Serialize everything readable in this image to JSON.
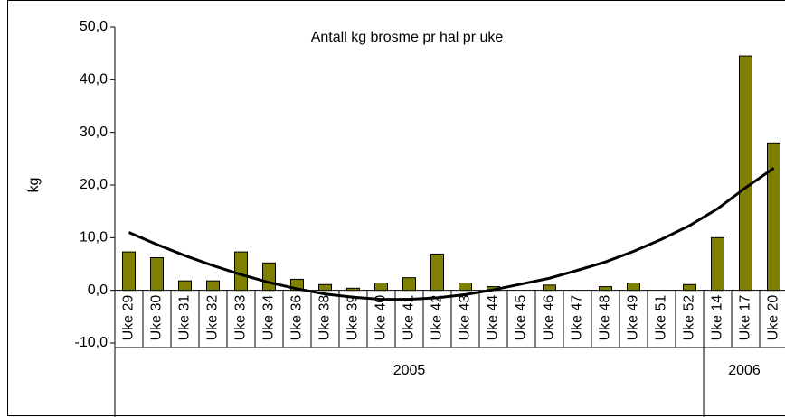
{
  "chart_data": {
    "type": "bar",
    "title": "Antall kg brosme pr hal pr uke",
    "y_label": "kg",
    "categories": [
      "Uke 29",
      "Uke 30",
      "Uke 31",
      "Uke 32",
      "Uke 33",
      "Uke 34",
      "Uke 36",
      "Uke 38",
      "Uke 39",
      "Uke 40",
      "Uke 41",
      "Uke 42",
      "Uke 43",
      "Uke 44",
      "Uke 45",
      "Uke 46",
      "Uke 47",
      "Uke 48",
      "Uke 49",
      "Uke 51",
      "Uke 52",
      "Uke 14",
      "Uke 17",
      "Uke 20"
    ],
    "values": [
      7.3,
      6.2,
      1.8,
      1.8,
      7.3,
      5.2,
      2.1,
      1.1,
      0.4,
      1.4,
      2.4,
      6.9,
      1.4,
      0.7,
      0,
      1.0,
      0,
      0.7,
      1.4,
      0,
      1.1,
      10.0,
      44.5,
      28.0
    ],
    "color": "#808000",
    "trendline": {
      "color": "#000000",
      "values": [
        11,
        8.7,
        6.6,
        4.7,
        3.0,
        1.5,
        0.3,
        -0.7,
        -1.3,
        -1.7,
        -1.7,
        -1.4,
        -0.8,
        0.1,
        1.2,
        2.3,
        3.8,
        5.4,
        7.4,
        9.7,
        12.3,
        15.5,
        19.5,
        23.2
      ]
    },
    "groups": [
      {
        "label": "2005",
        "first": 0,
        "last": 20
      },
      {
        "label": "2006",
        "first": 21,
        "last": 23
      }
    ],
    "ylim": [
      -10,
      50
    ],
    "yticks": [
      {
        "value": -10,
        "label": "-10,0"
      },
      {
        "value": 0,
        "label": "0,0"
      },
      {
        "value": 10,
        "label": "10,0"
      },
      {
        "value": 20,
        "label": "20,0"
      },
      {
        "value": 30,
        "label": "30,0"
      },
      {
        "value": 40,
        "label": "40,0"
      },
      {
        "value": 50,
        "label": "50,0"
      }
    ],
    "grid": false
  }
}
